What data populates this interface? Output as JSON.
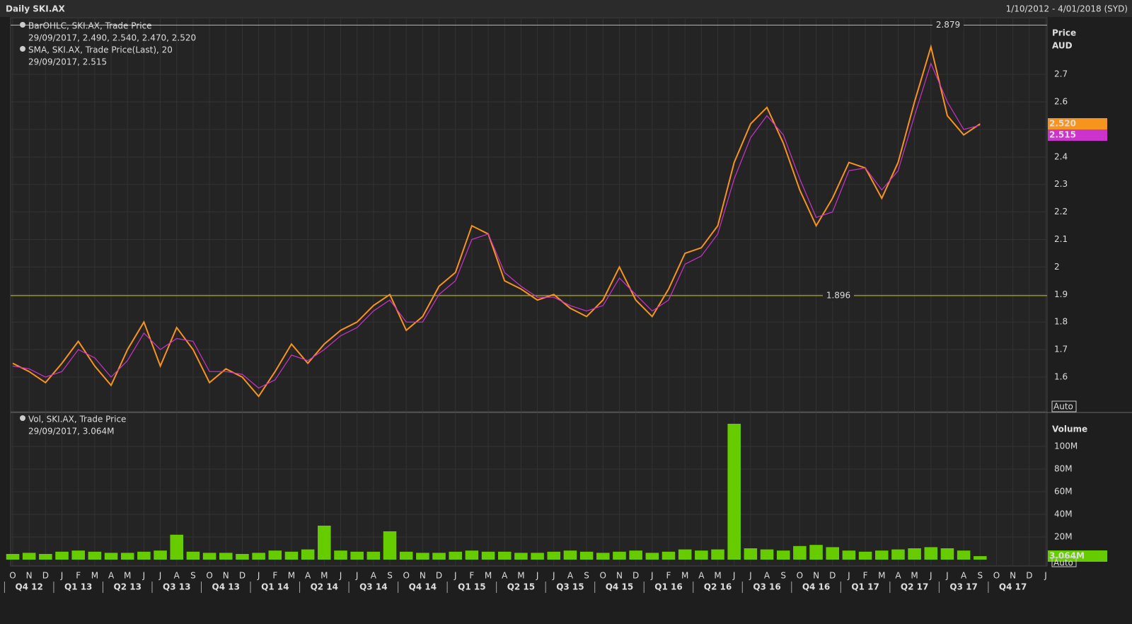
{
  "header": {
    "title": "Daily SKI.AX",
    "range": "1/10/2012 - 4/01/2018 (SYD)"
  },
  "chart_data": [
    {
      "type": "line",
      "ylabel": "Price",
      "yunit": "AUD",
      "auto_label": "Auto",
      "series": [
        {
          "name": "BarOHLC, SKI.AX, Trade Price",
          "detail": "29/09/2017, 2.490, 2.540, 2.470, 2.520",
          "color": "#f7941d",
          "values": [
            1.65,
            1.62,
            1.58,
            1.65,
            1.73,
            1.64,
            1.57,
            1.7,
            1.8,
            1.64,
            1.78,
            1.7,
            1.58,
            1.63,
            1.6,
            1.53,
            1.62,
            1.72,
            1.65,
            1.72,
            1.77,
            1.8,
            1.86,
            1.9,
            1.77,
            1.82,
            1.93,
            1.98,
            2.15,
            2.12,
            1.95,
            1.92,
            1.88,
            1.9,
            1.85,
            1.82,
            1.88,
            2.0,
            1.88,
            1.82,
            1.92,
            2.05,
            2.07,
            2.15,
            2.38,
            2.52,
            2.58,
            2.45,
            2.28,
            2.15,
            2.25,
            2.38,
            2.36,
            2.25,
            2.38,
            2.6,
            2.8,
            2.55,
            2.48,
            2.52,
            null,
            null,
            null,
            null
          ]
        },
        {
          "name": "SMA, SKI.AX, Trade Price(Last),  20",
          "detail": "29/09/2017, 2.515",
          "color": "#cc33cc",
          "values": [
            1.64,
            1.63,
            1.6,
            1.62,
            1.7,
            1.67,
            1.6,
            1.66,
            1.76,
            1.7,
            1.74,
            1.73,
            1.62,
            1.62,
            1.61,
            1.56,
            1.59,
            1.68,
            1.66,
            1.7,
            1.75,
            1.78,
            1.84,
            1.88,
            1.8,
            1.8,
            1.9,
            1.95,
            2.1,
            2.12,
            1.98,
            1.93,
            1.89,
            1.89,
            1.86,
            1.84,
            1.86,
            1.96,
            1.9,
            1.84,
            1.88,
            2.01,
            2.04,
            2.12,
            2.32,
            2.47,
            2.55,
            2.48,
            2.32,
            2.18,
            2.2,
            2.35,
            2.36,
            2.28,
            2.35,
            2.55,
            2.74,
            2.6,
            2.5,
            2.515,
            null,
            null,
            null,
            null
          ]
        }
      ],
      "ylim": [
        1.474,
        2.906
      ],
      "yticks": [
        1.6,
        1.7,
        1.8,
        1.9,
        2,
        2.1,
        2.2,
        2.3,
        2.4,
        2.5,
        2.6,
        2.7
      ],
      "grid": true,
      "reference_lines": [
        2.879,
        1.896
      ],
      "reference_color": "#cccc00",
      "last_labels": [
        {
          "value": 2.52,
          "label": "2.520"
        },
        2.515
      ]
    },
    {
      "type": "bar",
      "ylabel": "Volume",
      "auto_label": "Auto",
      "categories": [
        "O",
        "N",
        "D",
        "J",
        "F",
        "M",
        "A",
        "M",
        "J",
        "J",
        "A",
        "S",
        "O",
        "N",
        "D",
        "J",
        "F",
        "M",
        "A",
        "M",
        "J",
        "J",
        "A",
        "S",
        "O",
        "N",
        "D",
        "J",
        "F",
        "M",
        "A",
        "M",
        "J",
        "J",
        "A",
        "S",
        "O",
        "N",
        "D",
        "J",
        "F",
        "M",
        "A",
        "M",
        "J",
        "J",
        "A",
        "S",
        "O",
        "N",
        "D",
        "J",
        "F",
        "M",
        "A",
        "M",
        "J",
        "J",
        "A",
        "S",
        "O",
        "N",
        "D",
        "J"
      ],
      "quarters": [
        "Q4 12",
        "Q1 13",
        "Q2 13",
        "Q3 13",
        "Q4 13",
        "Q1 14",
        "Q2 14",
        "Q3 14",
        "Q4 14",
        "Q1 15",
        "Q2 15",
        "Q3 15",
        "Q4 15",
        "Q1 16",
        "Q2 16",
        "Q3 16",
        "Q4 16",
        "Q1 17",
        "Q2 17",
        "Q3 17",
        "Q4 17"
      ],
      "series": [
        {
          "name": "Vol, SKI.AX, Trade Price",
          "detail": "29/09/2017, 3.064M",
          "color": "#66cc00",
          "values": [
            5000000,
            6000000,
            5000000,
            7000000,
            8000000,
            7000000,
            6000000,
            6000000,
            7000000,
            8000000,
            22000000,
            7000000,
            6000000,
            6000000,
            5000000,
            6000000,
            8000000,
            7000000,
            9000000,
            30000000,
            8000000,
            7000000,
            7000000,
            25000000,
            7000000,
            6000000,
            6000000,
            7000000,
            8000000,
            7000000,
            7000000,
            6000000,
            6000000,
            7000000,
            8000000,
            7000000,
            6000000,
            7000000,
            8000000,
            6000000,
            7000000,
            9000000,
            8000000,
            9000000,
            120000000,
            10000000,
            9000000,
            8000000,
            12000000,
            13000000,
            11000000,
            8000000,
            7000000,
            8000000,
            9000000,
            10000000,
            11000000,
            10000000,
            8000000,
            3064000,
            null,
            null,
            null,
            null
          ]
        }
      ],
      "ylim": [
        0,
        130000000
      ],
      "yticks": [
        {
          "value": 20000000,
          "label": "20M"
        },
        {
          "value": 40000000,
          "label": "40M"
        },
        {
          "value": 60000000,
          "label": "60M"
        },
        {
          "value": 80000000,
          "label": "80M"
        },
        {
          "value": 100000000,
          "label": "100M"
        }
      ],
      "grid": true,
      "last_label": {
        "value": 3064000,
        "label": "3.064M"
      }
    }
  ]
}
